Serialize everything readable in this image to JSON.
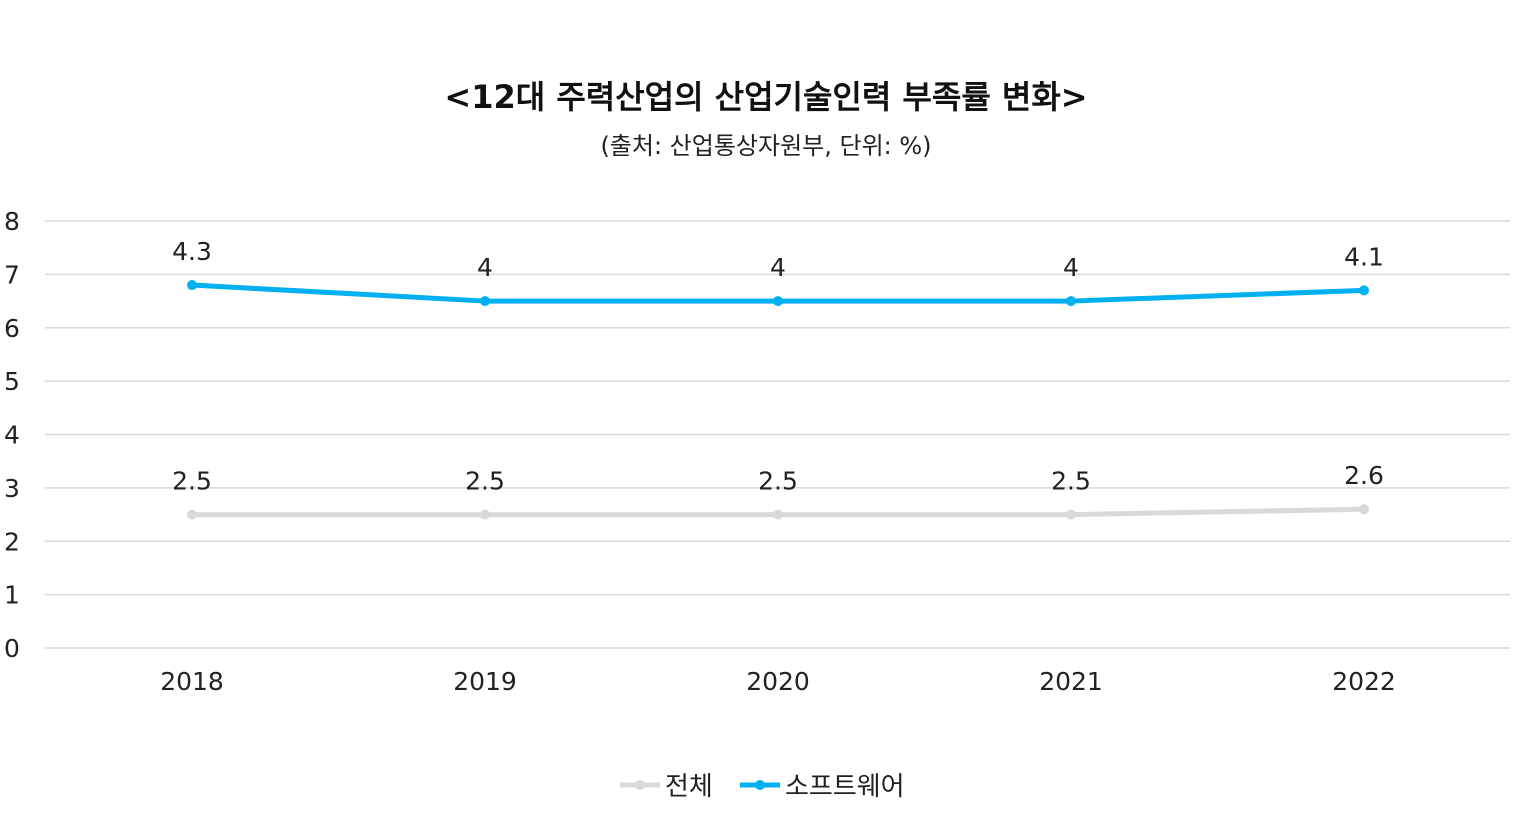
{
  "chart_data": {
    "type": "line",
    "title": "<12대 주력산업의 산업기술인력 부족률 변화>",
    "subtitle": "(출처: 산업통상자원부, 단위: %)",
    "categories": [
      "2018",
      "2019",
      "2020",
      "2021",
      "2022"
    ],
    "ylim": [
      0,
      8
    ],
    "yticks": [
      "0",
      "1",
      "2",
      "3",
      "4",
      "5",
      "6",
      "7",
      "8"
    ],
    "grid": true,
    "legend_position": "bottom",
    "series": [
      {
        "name": "전체",
        "color": "#d9d9d9",
        "values": [
          2.5,
          2.5,
          2.5,
          2.5,
          2.6
        ],
        "labels": [
          "2.5",
          "2.5",
          "2.5",
          "2.5",
          "2.6"
        ]
      },
      {
        "name": "소프트웨어",
        "color": "#00b0f0",
        "values": [
          6.8,
          6.5,
          6.5,
          6.5,
          6.7
        ],
        "labels": [
          "4.3",
          "4",
          "4",
          "4",
          "4.1"
        ]
      }
    ]
  }
}
